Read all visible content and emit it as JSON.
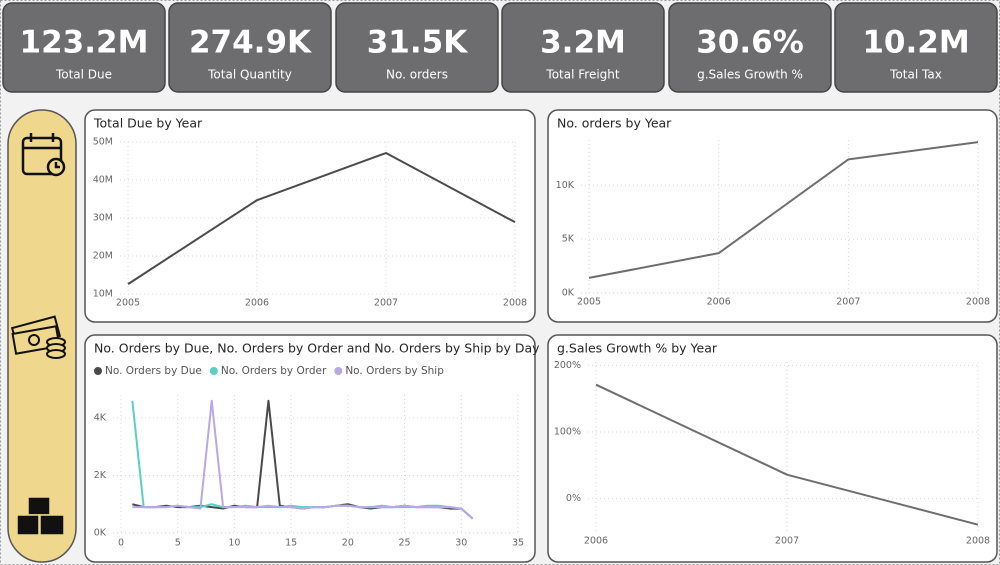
{
  "kpis": [
    {
      "value": "123.2M",
      "label": "Total Due"
    },
    {
      "value": "274.9K",
      "label": "Total Quantity"
    },
    {
      "value": "31.5K",
      "label": "No. orders"
    },
    {
      "value": "3.2M",
      "label": "Total Freight"
    },
    {
      "value": "30.6%",
      "label": "g.Sales Growth %"
    },
    {
      "value": "10.2M",
      "label": "Total Tax"
    }
  ],
  "chart_data": [
    {
      "type": "line",
      "title": "Total Due by Year",
      "categories": [
        "2005",
        "2006",
        "2007",
        "2008"
      ],
      "values": [
        12600000,
        34700000,
        47100000,
        28900000
      ],
      "color": "#4d4a4c",
      "ylim": [
        10000000,
        50000000
      ],
      "yticks": [
        {
          "value": 10000000,
          "label": "10M"
        },
        {
          "value": 20000000,
          "label": "20M"
        },
        {
          "value": 30000000,
          "label": "30M"
        },
        {
          "value": 40000000,
          "label": "40M"
        },
        {
          "value": 50000000,
          "label": "50M"
        }
      ],
      "grid": true
    },
    {
      "type": "line",
      "title": "No. orders by Year",
      "categories": [
        "2005",
        "2006",
        "2007",
        "2008"
      ],
      "values": [
        1400,
        3700,
        12400,
        14000
      ],
      "color": "#6e6e6e",
      "ylim": [
        0,
        14200
      ],
      "yticks": [
        {
          "value": 0,
          "label": "0K"
        },
        {
          "value": 5000,
          "label": "5K"
        },
        {
          "value": 10000,
          "label": "10K"
        }
      ],
      "grid": true
    },
    {
      "type": "line",
      "title": "No. Orders by Due, No. Orders by Order and No. Orders by Ship by Day",
      "x": [
        1,
        2,
        3,
        4,
        5,
        6,
        7,
        8,
        9,
        10,
        11,
        12,
        13,
        14,
        15,
        16,
        17,
        18,
        19,
        20,
        21,
        22,
        23,
        24,
        25,
        26,
        27,
        28,
        29,
        30,
        31
      ],
      "xlim": [
        0,
        35
      ],
      "xticks": [
        0,
        5,
        10,
        15,
        20,
        25,
        30,
        35
      ],
      "ylim": [
        0,
        4800
      ],
      "yticks": [
        {
          "value": 0,
          "label": "0K"
        },
        {
          "value": 2000,
          "label": "2K"
        },
        {
          "value": 4000,
          "label": "4K"
        }
      ],
      "grid": true,
      "legend": "top-left",
      "series": [
        {
          "name": "No. Orders by Due",
          "color": "#4a4a4a",
          "values": [
            1000,
            900,
            900,
            950,
            900,
            900,
            950,
            900,
            850,
            950,
            900,
            900,
            4600,
            950,
            900,
            850,
            900,
            900,
            950,
            1000,
            900,
            850,
            900,
            900,
            950,
            900,
            900,
            900,
            850,
            850,
            500
          ]
        },
        {
          "name": "No. Orders by Order",
          "color": "#5ccfc3",
          "values": [
            4600,
            900,
            900,
            900,
            950,
            900,
            900,
            1000,
            900,
            900,
            950,
            900,
            900,
            900,
            950,
            900,
            900,
            900,
            950,
            950,
            900,
            900,
            950,
            900,
            900,
            900,
            950,
            950,
            900,
            850,
            500
          ]
        },
        {
          "name": "No. Orders by Ship",
          "color": "#b9a7e8",
          "values": [
            900,
            900,
            900,
            900,
            950,
            900,
            850,
            4600,
            900,
            900,
            900,
            900,
            950,
            900,
            900,
            850,
            900,
            900,
            950,
            950,
            900,
            900,
            900,
            900,
            950,
            900,
            900,
            900,
            900,
            850,
            500
          ]
        }
      ]
    },
    {
      "type": "line",
      "title": "g.Sales Growth % by Year",
      "categories": [
        "2006",
        "2007",
        "2008"
      ],
      "values": [
        171,
        36,
        -39
      ],
      "color": "#6e6e6e",
      "ylim": [
        -50,
        205
      ],
      "yticks": [
        {
          "value": 0,
          "label": "0%"
        },
        {
          "value": 100,
          "label": "100%"
        },
        {
          "value": 200,
          "label": "200%"
        }
      ],
      "grid": true
    }
  ]
}
